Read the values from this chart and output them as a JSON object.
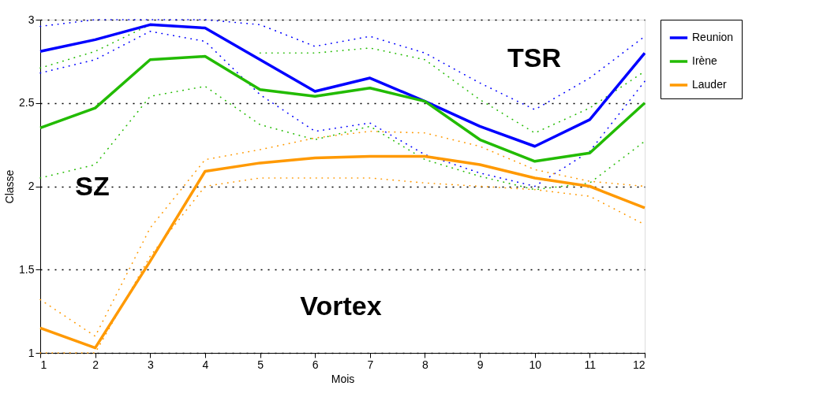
{
  "chart_data": {
    "type": "line",
    "xlabel": "Mois",
    "ylabel": "Classe",
    "x": [
      1,
      2,
      3,
      4,
      5,
      6,
      7,
      8,
      9,
      10,
      11,
      12
    ],
    "xlim": [
      1,
      12
    ],
    "xticks": [
      1,
      2,
      3,
      4,
      5,
      6,
      7,
      8,
      9,
      10,
      11,
      12
    ],
    "ylim": [
      1,
      3
    ],
    "yticks": [
      1,
      1.5,
      2,
      2.5,
      3
    ],
    "grid": "y",
    "legend": "right",
    "marker": "none",
    "line_style": "solid",
    "annotations": [
      "TSR",
      "SZ",
      "Vortex"
    ],
    "series": [
      {
        "name": "Reunion",
        "color": "#0000ff",
        "values": [
          2.81,
          2.88,
          2.97,
          2.95,
          2.76,
          2.57,
          2.65,
          2.51,
          2.36,
          2.24,
          2.4,
          2.8
        ]
      },
      {
        "name": "Irène",
        "color": "#22bb00",
        "values": [
          2.35,
          2.47,
          2.76,
          2.78,
          2.58,
          2.54,
          2.59,
          2.51,
          2.28,
          2.15,
          2.2,
          2.5
        ]
      },
      {
        "name": "Lauder",
        "color": "#ff9900",
        "values": [
          1.15,
          1.03,
          1.55,
          2.09,
          2.14,
          2.17,
          2.18,
          2.18,
          2.13,
          2.05,
          2.0,
          1.87
        ]
      },
      {
        "color": "#0000ff",
        "line_style": "dotted",
        "values": [
          2.68,
          2.76,
          2.93,
          2.87,
          2.55,
          2.33,
          2.38,
          2.19,
          2.08,
          2.0,
          2.21,
          2.63
        ]
      },
      {
        "color": "#0000ff",
        "line_style": "dotted",
        "values": [
          2.96,
          3.0,
          3.0,
          3.0,
          2.97,
          2.84,
          2.9,
          2.8,
          2.62,
          2.46,
          2.65,
          2.9
        ]
      },
      {
        "color": "#22bb00",
        "line_style": "dotted",
        "values": [
          2.05,
          2.13,
          2.54,
          2.6,
          2.37,
          2.28,
          2.36,
          2.16,
          2.06,
          1.98,
          2.02,
          2.27
        ]
      },
      {
        "color": "#22bb00",
        "line_style": "dotted",
        "values": [
          2.71,
          2.81,
          2.97,
          null,
          2.8,
          2.8,
          2.83,
          2.76,
          2.52,
          2.32,
          2.47,
          2.69
        ]
      },
      {
        "color": "#ff9900",
        "line_style": "dotted",
        "values": [
          1.0,
          1.0,
          1.58,
          2.0,
          2.05,
          2.05,
          2.05,
          2.02,
          2.0,
          1.98,
          1.94,
          1.77
        ]
      },
      {
        "color": "#ff9900",
        "line_style": "dotted",
        "values": [
          1.32,
          1.1,
          1.75,
          2.16,
          2.22,
          2.29,
          2.33,
          2.32,
          2.24,
          2.1,
          2.03,
          2.0
        ]
      }
    ]
  }
}
